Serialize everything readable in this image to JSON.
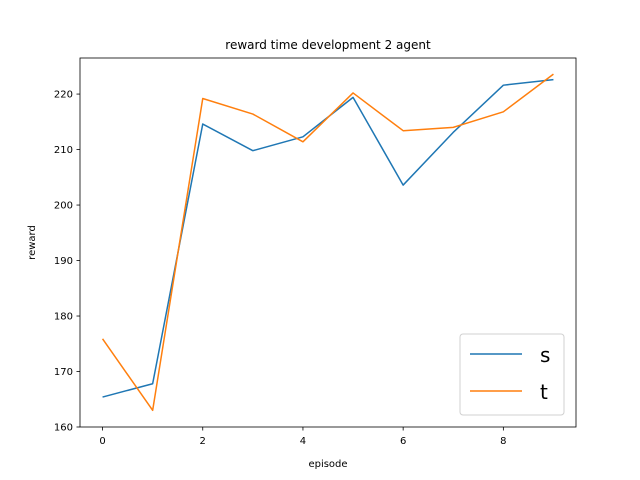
{
  "chart_data": {
    "type": "line",
    "title": "reward time development 2 agent",
    "xlabel": "episode",
    "ylabel": "reward",
    "xlim": [
      -0.45,
      9.45
    ],
    "ylim": [
      160,
      226.5
    ],
    "xticks": [
      0,
      2,
      4,
      6,
      8
    ],
    "yticks": [
      160,
      170,
      180,
      190,
      200,
      210,
      220
    ],
    "grid": false,
    "legend_position": "lower-right",
    "x": [
      0,
      1,
      2,
      3,
      4,
      5,
      6,
      7,
      8,
      9
    ],
    "series": [
      {
        "name": "s",
        "color": "#1f77b4",
        "values": [
          165.4,
          167.8,
          214.6,
          209.8,
          212.3,
          219.4,
          203.6,
          213.1,
          221.6,
          222.6
        ]
      },
      {
        "name": "t",
        "color": "#ff7f0e",
        "values": [
          175.9,
          163.0,
          219.2,
          216.4,
          211.4,
          220.2,
          213.4,
          214.0,
          216.8,
          223.6
        ]
      }
    ]
  }
}
